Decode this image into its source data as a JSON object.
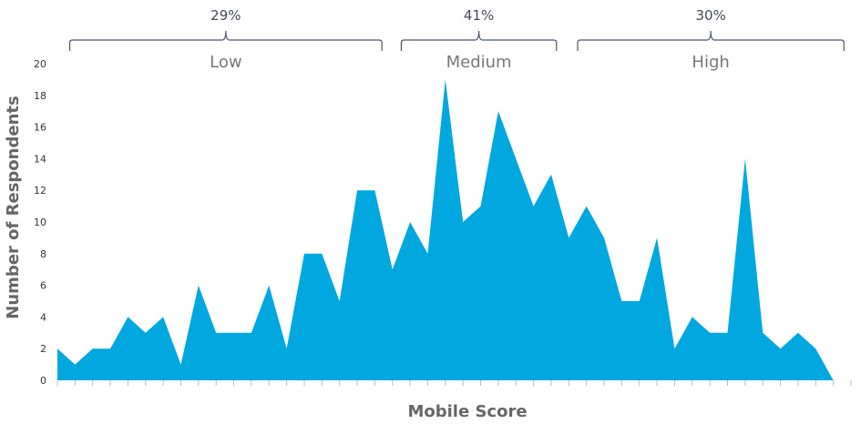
{
  "chart_data": {
    "type": "area",
    "title": "",
    "xlabel": "Mobile Score",
    "ylabel": "Number of Respondents",
    "ylim": [
      0,
      20
    ],
    "yticks": [
      0,
      2,
      4,
      6,
      8,
      10,
      12,
      14,
      16,
      18,
      20
    ],
    "grid": false,
    "color": "#00a8df",
    "x": [
      1,
      2,
      3,
      4,
      5,
      6,
      7,
      8,
      9,
      10,
      11,
      12,
      13,
      14,
      15,
      16,
      17,
      18,
      19,
      20,
      21,
      22,
      23,
      24,
      25,
      26,
      27,
      28,
      29,
      30,
      31,
      32,
      33,
      34,
      35,
      36,
      37,
      38,
      39,
      40,
      41,
      42,
      43,
      44,
      45,
      46
    ],
    "values": [
      2,
      1,
      2,
      2,
      4,
      3,
      4,
      1,
      6,
      3,
      3,
      3,
      6,
      2,
      8,
      8,
      5,
      12,
      12,
      7,
      10,
      8,
      19,
      10,
      11,
      17,
      14,
      11,
      13,
      9,
      11,
      9,
      5,
      5,
      9,
      2,
      4,
      3,
      3,
      14,
      3,
      2,
      3,
      2,
      0,
      0
    ],
    "segments": [
      {
        "label": "Low",
        "percent": "29%",
        "start_x": 1.7,
        "end_x": 19.4
      },
      {
        "label": "Medium",
        "percent": "41%",
        "start_x": 20.5,
        "end_x": 29.3
      },
      {
        "label": "High",
        "percent": "30%",
        "start_x": 30.5,
        "end_x": 45.6
      }
    ]
  }
}
